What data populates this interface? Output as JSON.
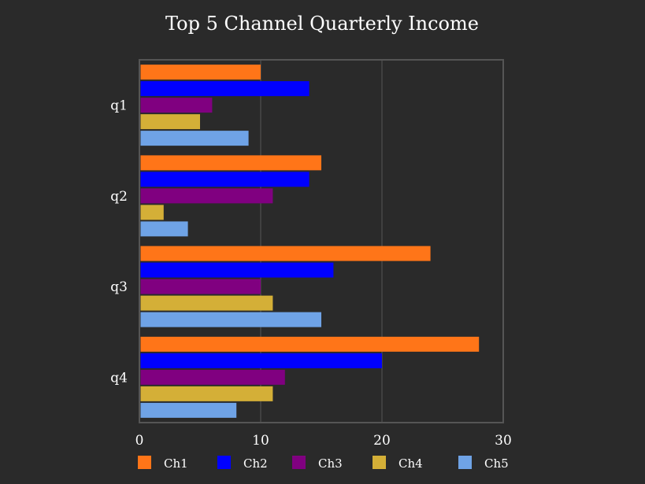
{
  "chart_data": {
    "type": "bar",
    "orientation": "horizontal",
    "title": "Top 5  Channel Quarterly Income",
    "xlabel": "",
    "ylabel": "",
    "categories": [
      "q1",
      "q2",
      "q3",
      "q4"
    ],
    "xlim": [
      0,
      30
    ],
    "xticks": [
      0,
      10,
      20,
      30
    ],
    "grid": true,
    "legend_position": "bottom",
    "series": [
      {
        "name": "Ch1",
        "color": "#ff7518",
        "values": [
          10,
          15,
          24,
          28
        ]
      },
      {
        "name": "Ch2",
        "color": "#0000ff",
        "values": [
          14,
          14,
          16,
          20
        ]
      },
      {
        "name": "Ch3",
        "color": "#800080",
        "values": [
          6,
          11,
          10,
          12
        ]
      },
      {
        "name": "Ch4",
        "color": "#d4af37",
        "values": [
          5,
          2,
          11,
          11
        ]
      },
      {
        "name": "Ch5",
        "color": "#6fa3e6",
        "values": [
          9,
          4,
          15,
          8
        ]
      }
    ]
  }
}
